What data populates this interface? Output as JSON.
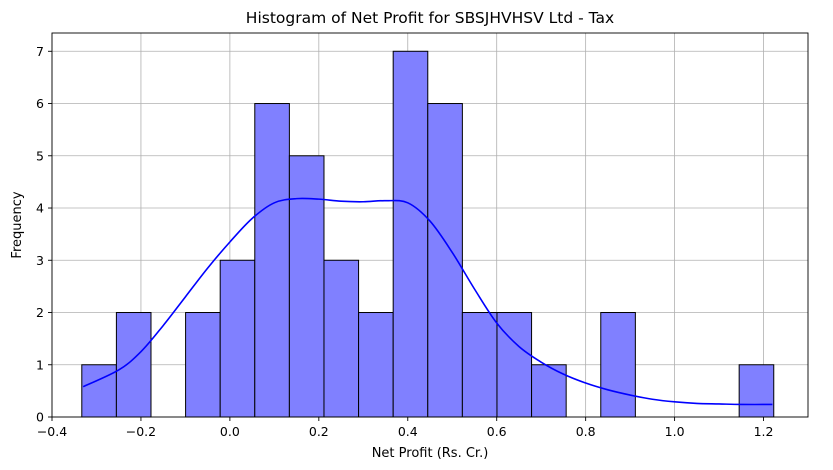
{
  "chart_data": {
    "type": "bar",
    "subtype": "histogram-with-kde",
    "title": "Histogram of Net Profit for SBSJHVHSV Ltd - Tax",
    "xlabel": "Net Profit (Rs. Cr.)",
    "ylabel": "Frequency",
    "xlim": [
      -0.4,
      1.3
    ],
    "ylim": [
      0,
      7.35
    ],
    "xticks": [
      "−0.4",
      "−0.2",
      "0.0",
      "0.2",
      "0.4",
      "0.6",
      "0.8",
      "1.0",
      "1.2"
    ],
    "yticks": [
      "0",
      "1",
      "2",
      "3",
      "4",
      "5",
      "6",
      "7"
    ],
    "grid": true,
    "legend": "none",
    "colors": {
      "bar_fill": "#8080ff",
      "bar_edge": "#000000",
      "kde_line": "#0000ff",
      "grid": "#b0b0b0"
    },
    "bins": {
      "start": -0.333,
      "width": 0.0778,
      "counts": [
        1,
        2,
        0,
        2,
        3,
        6,
        5,
        3,
        2,
        7,
        6,
        2,
        2,
        1,
        0,
        2,
        0,
        0,
        0,
        1
      ]
    },
    "kde": {
      "x": [
        -0.33,
        -0.25,
        -0.2,
        -0.15,
        -0.1,
        -0.05,
        0.0,
        0.05,
        0.1,
        0.15,
        0.2,
        0.25,
        0.3,
        0.35,
        0.4,
        0.45,
        0.5,
        0.55,
        0.6,
        0.65,
        0.7,
        0.75,
        0.8,
        0.85,
        0.9,
        0.95,
        1.0,
        1.05,
        1.1,
        1.15,
        1.22
      ],
      "y": [
        0.58,
        0.9,
        1.25,
        1.75,
        2.3,
        2.85,
        3.35,
        3.8,
        4.1,
        4.18,
        4.17,
        4.13,
        4.12,
        4.14,
        4.1,
        3.75,
        3.15,
        2.45,
        1.8,
        1.35,
        1.05,
        0.82,
        0.65,
        0.52,
        0.42,
        0.34,
        0.29,
        0.26,
        0.25,
        0.24,
        0.24
      ]
    }
  }
}
